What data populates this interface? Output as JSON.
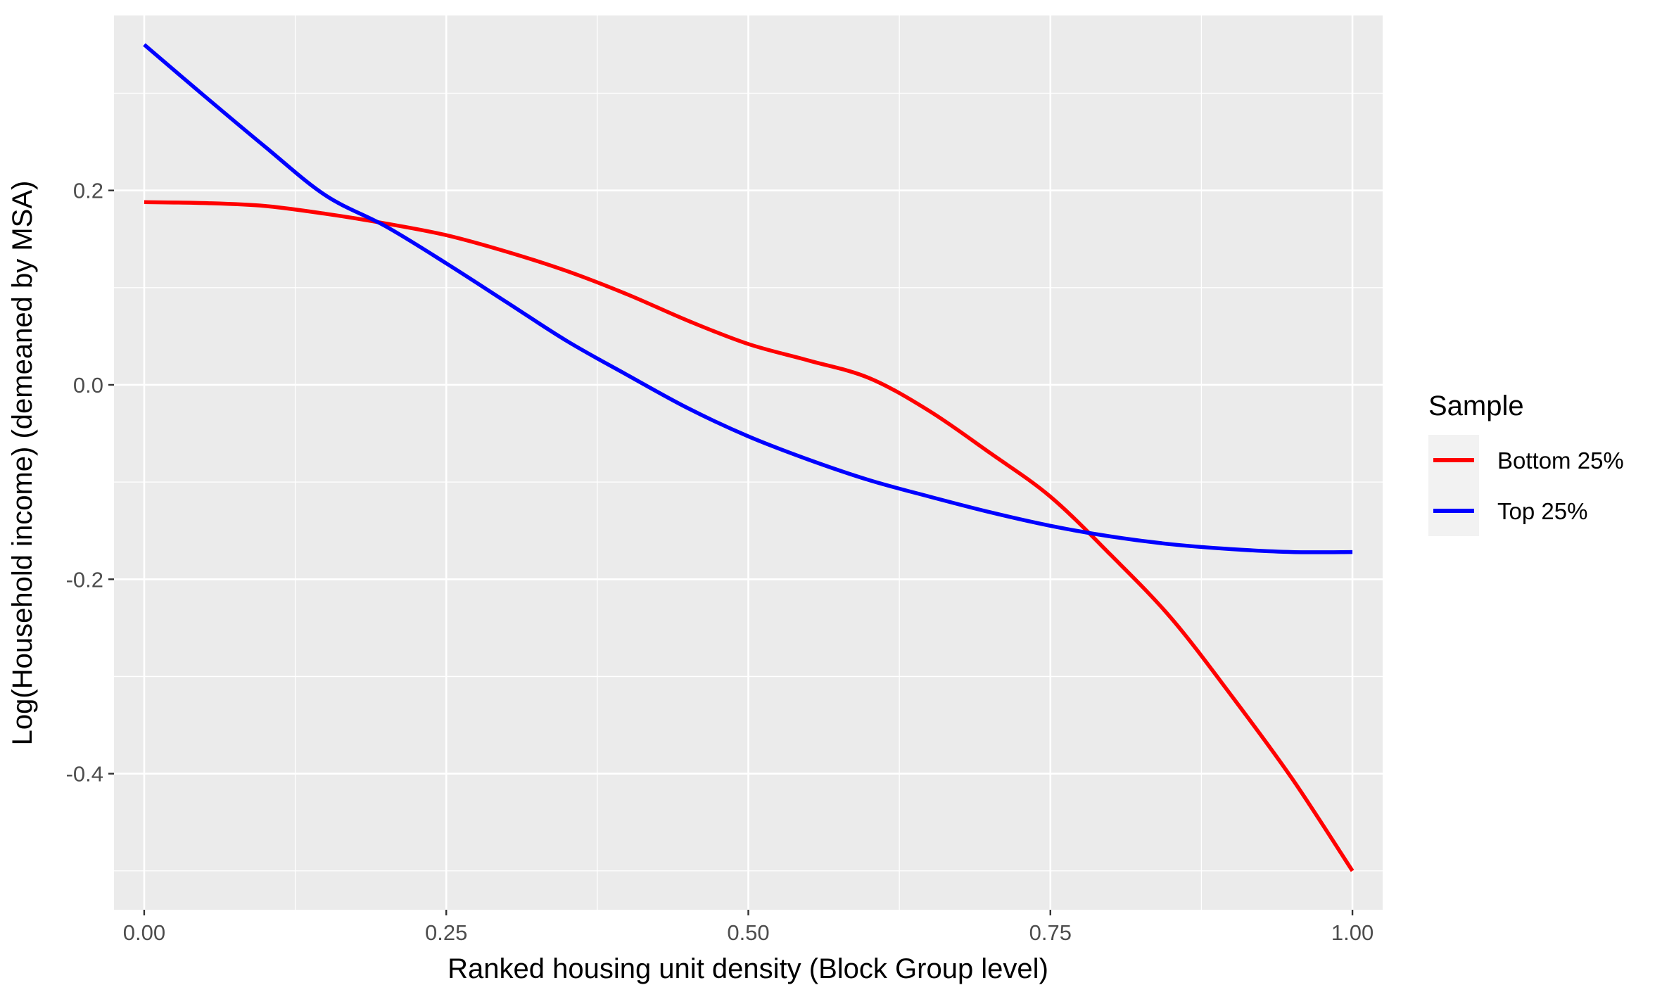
{
  "chart_data": {
    "type": "line",
    "xlabel": "Ranked housing unit density (Block Group level)",
    "ylabel": "Log(Household income) (demeaned by MSA)",
    "xlim": [
      -0.025,
      1.025
    ],
    "ylim": [
      -0.54,
      0.38
    ],
    "x_ticks": [
      0.0,
      0.25,
      0.5,
      0.75,
      1.0
    ],
    "x_tick_labels": [
      "0.00",
      "0.25",
      "0.50",
      "0.75",
      "1.00"
    ],
    "y_ticks": [
      -0.4,
      -0.2,
      0.0,
      0.2
    ],
    "y_tick_labels": [
      "-0.4",
      "-0.2",
      "0.0",
      "0.2"
    ],
    "grid": true,
    "legend": {
      "title": "Sample",
      "position": "right",
      "entries": [
        "Bottom 25%",
        "Top 25%"
      ]
    },
    "series": [
      {
        "name": "Bottom 25%",
        "color": "#ff0000",
        "x": [
          0.0,
          0.05,
          0.1,
          0.15,
          0.2,
          0.25,
          0.3,
          0.35,
          0.4,
          0.45,
          0.5,
          0.55,
          0.6,
          0.65,
          0.7,
          0.75,
          0.8,
          0.85,
          0.9,
          0.95,
          1.0
        ],
        "y": [
          0.188,
          0.187,
          0.184,
          0.176,
          0.166,
          0.154,
          0.137,
          0.117,
          0.093,
          0.066,
          0.042,
          0.025,
          0.007,
          -0.027,
          -0.07,
          -0.115,
          -0.175,
          -0.24,
          -0.32,
          -0.405,
          -0.5
        ]
      },
      {
        "name": "Top 25%",
        "color": "#0000ff",
        "x": [
          0.0,
          0.05,
          0.1,
          0.15,
          0.2,
          0.25,
          0.3,
          0.35,
          0.4,
          0.45,
          0.5,
          0.55,
          0.6,
          0.65,
          0.7,
          0.75,
          0.8,
          0.85,
          0.9,
          0.95,
          1.0
        ],
        "y": [
          0.35,
          0.297,
          0.245,
          0.195,
          0.163,
          0.125,
          0.085,
          0.045,
          0.01,
          -0.024,
          -0.053,
          -0.077,
          -0.098,
          -0.115,
          -0.131,
          -0.145,
          -0.156,
          -0.164,
          -0.169,
          -0.172,
          -0.172
        ]
      }
    ]
  }
}
